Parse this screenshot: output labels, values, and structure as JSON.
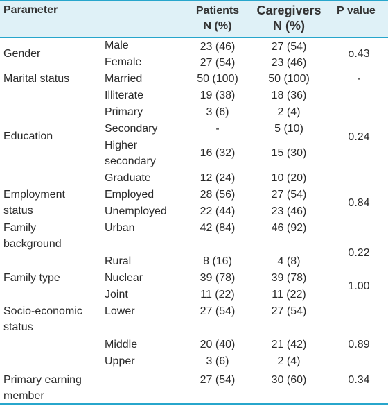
{
  "header": {
    "parameter": "Parameter",
    "patients_line1": "Patients",
    "patients_line2": "N (%)",
    "caregivers_line1": "Caregivers",
    "caregivers_line2": "N (%)",
    "pvalue": "P value"
  },
  "rows": [
    {
      "param": "",
      "sub": "Male",
      "patients": "23 (46)",
      "caregivers": "27 (54)",
      "p": ""
    },
    {
      "param": "Gender",
      "sub": "Female",
      "patients": "27 (54)",
      "caregivers": "23 (46)",
      "p": "o.43"
    },
    {
      "param": "Marital status",
      "sub": "Married",
      "patients": "50 (100)",
      "caregivers": "50 (100)",
      "p": "-"
    },
    {
      "param": "",
      "sub": "Illiterate",
      "patients": "19 (38)",
      "caregivers": "18 (36)",
      "p": ""
    },
    {
      "param": "",
      "sub": "Primary",
      "patients": "3 (6)",
      "caregivers": "2 (4)",
      "p": ""
    },
    {
      "param": "Education",
      "sub": "Secondary",
      "patients": "-",
      "caregivers": "5 (10)",
      "p": "0.24"
    },
    {
      "param": "",
      "sub_line1": "Higher",
      "sub_line2": "secondary",
      "patients": "16 (32)",
      "caregivers": "15 (30)",
      "p": ""
    },
    {
      "param": "",
      "sub": "Graduate",
      "patients": "12 (24)",
      "caregivers": "10 (20)",
      "p": ""
    },
    {
      "param_line1": "Employment",
      "param_line2": "status",
      "sub": "Employed",
      "sub2": "Unemployed",
      "patients": "28 (56)",
      "patients2": "22 (44)",
      "caregivers": "27 (54)",
      "caregivers2": "23 (46)",
      "p": "0.84"
    },
    {
      "param_line1": "Family",
      "param_line2": "background",
      "sub": "Urban",
      "patients": "42 (84)",
      "caregivers": "46 (92)",
      "p": ""
    },
    {
      "param": "",
      "sub": "Rural",
      "patients": "8 (16)",
      "caregivers": "4 (8)",
      "p": "0.22"
    },
    {
      "param": "Family type",
      "sub": "Nuclear",
      "patients": "39 (78)",
      "caregivers": "39 (78)",
      "p": "1.00"
    },
    {
      "param": "",
      "sub": "Joint",
      "patients": "11 (22)",
      "caregivers": "11 (22)",
      "p": ""
    },
    {
      "param_line1": "Socio-economic",
      "param_line2": "status",
      "sub": "Lower",
      "patients": "27 (54)",
      "caregivers": "27 (54)",
      "p": ""
    },
    {
      "param": "",
      "sub": "Middle",
      "patients": "20 (40)",
      "caregivers": "21 (42)",
      "p": "0.89"
    },
    {
      "param": "",
      "sub": "Upper",
      "patients": "3 (6)",
      "caregivers": "2 (4)",
      "p": ""
    },
    {
      "param_line1": "Primary earning",
      "param_line2": "member",
      "sub": "",
      "patients": "27 (54)",
      "caregivers": "30 (60)",
      "p": "0.34"
    }
  ]
}
